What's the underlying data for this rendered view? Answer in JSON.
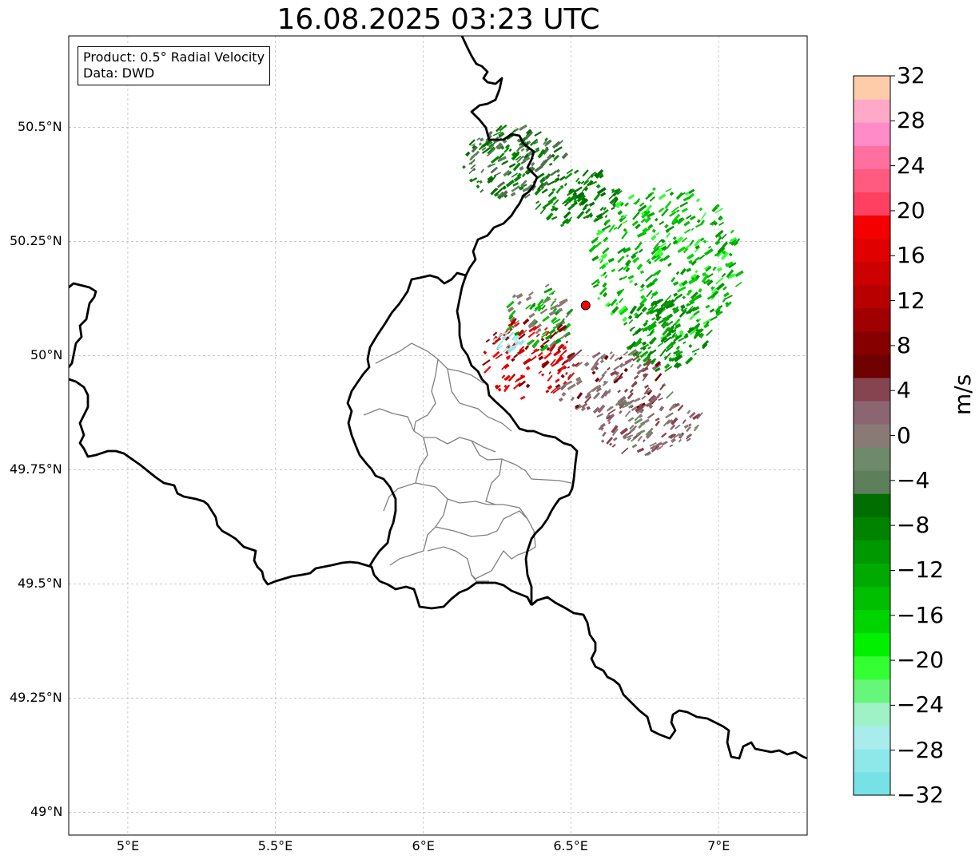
{
  "title": "16.08.2025 03:23 UTC",
  "info": {
    "product": "Product: 0.5° Radial Velocity",
    "source": "Data: DWD"
  },
  "axes": {
    "lon_ticks": [
      {
        "value": 5.0,
        "label": "5°E"
      },
      {
        "value": 5.5,
        "label": "5.5°E"
      },
      {
        "value": 6.0,
        "label": "6°E"
      },
      {
        "value": 6.5,
        "label": "6.5°E"
      },
      {
        "value": 7.0,
        "label": "7°E"
      }
    ],
    "lat_ticks": [
      {
        "value": 50.5,
        "label": "50.5°N"
      },
      {
        "value": 50.25,
        "label": "50.25°N"
      },
      {
        "value": 50.0,
        "label": "50°N"
      },
      {
        "value": 49.75,
        "label": "49.75°N"
      },
      {
        "value": 49.5,
        "label": "49.5°N"
      },
      {
        "value": 49.25,
        "label": "49.25°N"
      },
      {
        "value": 49.0,
        "label": "49°N"
      }
    ],
    "extent": {
      "lon_min": 4.8,
      "lon_max": 7.3,
      "lat_min": 48.95,
      "lat_max": 50.7
    }
  },
  "radar_site": {
    "lon": 6.55,
    "lat": 50.11,
    "color": "#ff0000"
  },
  "colorbar": {
    "unit": "m/s",
    "min": -32,
    "max": 32,
    "tick_labels": [
      "32",
      "28",
      "24",
      "20",
      "16",
      "12",
      "8",
      "4",
      "0",
      "−4",
      "−8",
      "−12",
      "−16",
      "−20",
      "−24",
      "−28",
      "−32"
    ],
    "colors_bottom_to_top": [
      "#76e2e6",
      "#8de8ea",
      "#a9ecec",
      "#9ef2c6",
      "#66f77a",
      "#33ff33",
      "#00f000",
      "#00d400",
      "#00be00",
      "#00aa00",
      "#009800",
      "#008400",
      "#006e00",
      "#5e7f5c",
      "#6d8a6a",
      "#8a7a76",
      "#8b6672",
      "#844450",
      "#6e0000",
      "#860000",
      "#a00000",
      "#b80000",
      "#cc0000",
      "#e00000",
      "#f50000",
      "#ff4060",
      "#ff5a80",
      "#ff70a0",
      "#ff8cc8",
      "#ffa8c8",
      "#ffccaa"
    ]
  },
  "colors": {
    "border_country": "#000000",
    "border_region": "#808080",
    "grid": "#b8b8b8"
  }
}
